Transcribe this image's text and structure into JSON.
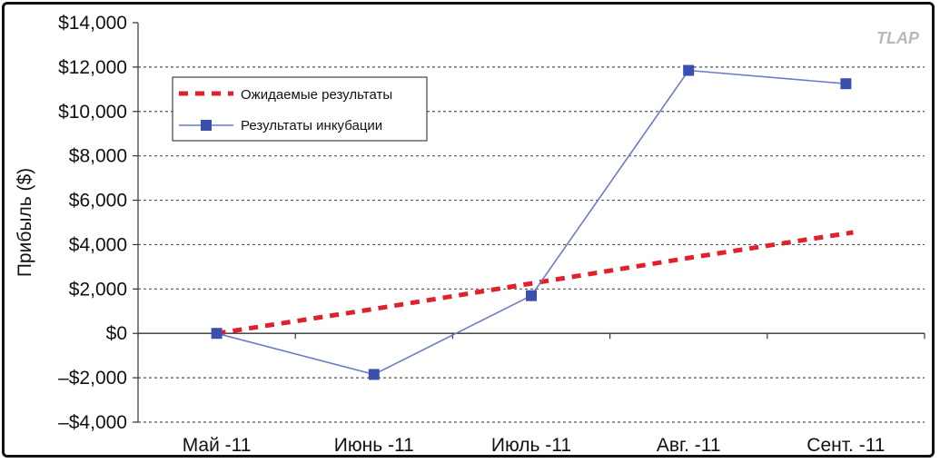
{
  "watermark": "TLAP",
  "colors": {
    "expected": "#e0202a",
    "actual": "#3a4fae",
    "actual_line": "#6b7bc4",
    "grid": "#555555",
    "axis": "#333333"
  },
  "chart_data": {
    "type": "line",
    "title": "",
    "xlabel": "",
    "ylabel": "Прибыль ($)",
    "categories": [
      "Май -11",
      "Июнь -11",
      "Июль -11",
      "Авг. -11",
      "Сент. -11"
    ],
    "ylim": [
      -4000,
      14000
    ],
    "yticks": [
      -4000,
      -2000,
      0,
      2000,
      4000,
      6000,
      8000,
      10000,
      12000,
      14000
    ],
    "ytick_labels": [
      "–$4,000",
      "–$2,000",
      "$0",
      "$2,000",
      "$4,000",
      "$6,000",
      "$8,000",
      "$10,000",
      "$12,000",
      "$14,000"
    ],
    "grid": true,
    "legend_position": "top-left",
    "series": [
      {
        "name": "Ожидаемые результаты",
        "style": "dashed",
        "values": [
          0,
          1100,
          2250,
          3400,
          4550
        ]
      },
      {
        "name": "Результаты инкубации",
        "style": "line-square-markers",
        "values": [
          0,
          -1850,
          1700,
          11850,
          11250
        ]
      }
    ]
  }
}
